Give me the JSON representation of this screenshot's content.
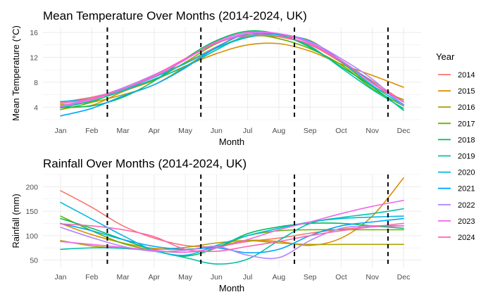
{
  "chart_data": [
    {
      "type": "line",
      "title": "Mean Temperature Over Months (2014-2024, UK)",
      "xlabel": "Month",
      "ylabel": "Mean Temperature (°C)",
      "categories": [
        "Jan",
        "Feb",
        "Mar",
        "Apr",
        "May",
        "Jun",
        "Jul",
        "Aug",
        "Sep",
        "Oct",
        "Nov",
        "Dec"
      ],
      "ylim": [
        2,
        16.8
      ],
      "yticks": [
        4,
        8,
        12,
        16
      ],
      "season_dividers": [
        2.5,
        5.5,
        8.5,
        11.5
      ],
      "grid": true,
      "series": [
        {
          "name": "2014",
          "color": "#F8766D",
          "values": [
            4.8,
            5.6,
            6.9,
            8.9,
            11.1,
            13.7,
            15.8,
            15.3,
            14.0,
            11.2,
            8.2,
            4.9
          ]
        },
        {
          "name": "2015",
          "color": "#DB8E00",
          "values": [
            3.9,
            4.3,
            6.5,
            8.3,
            10.6,
            12.6,
            14.0,
            14.2,
            13.0,
            10.9,
            9.1,
            7.2
          ]
        },
        {
          "name": "2016",
          "color": "#AEA200",
          "values": [
            4.4,
            4.8,
            6.0,
            7.6,
            10.5,
            13.5,
            15.3,
            15.3,
            14.7,
            11.2,
            7.4,
            5.2
          ]
        },
        {
          "name": "2017",
          "color": "#64B200",
          "values": [
            3.6,
            4.8,
            6.9,
            8.4,
            11.2,
            14.2,
            15.6,
            15.0,
            13.4,
            10.8,
            7.0,
            4.2
          ]
        },
        {
          "name": "2018",
          "color": "#00BD5C",
          "values": [
            4.0,
            4.2,
            5.6,
            8.2,
            11.8,
            14.7,
            16.2,
            15.7,
            13.6,
            10.5,
            7.3,
            3.5
          ]
        },
        {
          "name": "2019",
          "color": "#00C1A7",
          "values": [
            3.9,
            5.0,
            6.6,
            8.5,
            10.5,
            13.2,
            15.5,
            15.6,
            13.8,
            10.3,
            6.8,
            3.8
          ]
        },
        {
          "name": "2020",
          "color": "#00BADE",
          "values": [
            4.9,
            5.4,
            6.8,
            8.8,
            11.0,
            13.5,
            15.2,
            15.7,
            14.3,
            11.3,
            7.5,
            4.3
          ]
        },
        {
          "name": "2021",
          "color": "#00A6FF",
          "values": [
            2.6,
            3.8,
            5.8,
            7.6,
            10.3,
            13.6,
            15.8,
            15.7,
            14.6,
            11.5,
            8.0,
            4.4
          ]
        },
        {
          "name": "2022",
          "color": "#B385FF",
          "values": [
            4.2,
            5.4,
            7.1,
            9.2,
            11.7,
            14.3,
            15.8,
            15.8,
            14.5,
            11.8,
            8.5,
            4.2
          ]
        },
        {
          "name": "2023",
          "color": "#EF67EB",
          "values": [
            4.1,
            5.2,
            6.9,
            8.9,
            11.6,
            14.5,
            16.0,
            15.8,
            14.3,
            11.5,
            7.8,
            4.8
          ]
        },
        {
          "name": "2024",
          "color": "#FF63B6",
          "values": [
            4.6,
            5.4,
            6.9,
            9.1,
            11.8,
            14.3,
            15.5,
            15.4,
            14.1,
            11.4,
            7.9,
            4.9
          ]
        }
      ]
    },
    {
      "type": "line",
      "title": "Rainfall Over Months (2014-2024, UK)",
      "xlabel": "Month",
      "ylabel": "Rainfall (mm)",
      "categories": [
        "Jan",
        "Feb",
        "Mar",
        "Apr",
        "May",
        "Jun",
        "Jul",
        "Aug",
        "Sep",
        "Oct",
        "Nov",
        "Dec"
      ],
      "ylim": [
        35,
        225
      ],
      "yticks": [
        50,
        100,
        150,
        200
      ],
      "season_dividers": [
        2.5,
        5.5,
        8.5,
        11.5
      ],
      "grid": true,
      "series": [
        {
          "name": "2014",
          "color": "#F8766D",
          "values": [
            192,
            158,
            120,
            95,
            80,
            78,
            88,
            95,
            105,
            113,
            118,
            120
          ]
        },
        {
          "name": "2015",
          "color": "#DB8E00",
          "values": [
            125,
            102,
            85,
            74,
            72,
            78,
            90,
            88,
            80,
            95,
            140,
            218
          ]
        },
        {
          "name": "2016",
          "color": "#AEA200",
          "values": [
            90,
            79,
            74,
            72,
            76,
            85,
            90,
            85,
            82,
            82,
            82,
            82
          ]
        },
        {
          "name": "2017",
          "color": "#64B200",
          "values": [
            140,
            110,
            84,
            70,
            66,
            76,
            100,
            110,
            112,
            112,
            112,
            112
          ]
        },
        {
          "name": "2018",
          "color": "#00BD5C",
          "values": [
            135,
            115,
            92,
            70,
            58,
            75,
            104,
            118,
            125,
            125,
            120,
            115
          ]
        },
        {
          "name": "2019",
          "color": "#00C1A7",
          "values": [
            72,
            75,
            74,
            68,
            55,
            42,
            52,
            90,
            125,
            137,
            145,
            155
          ]
        },
        {
          "name": "2020",
          "color": "#00BADE",
          "values": [
            168,
            134,
            100,
            70,
            60,
            80,
            100,
            115,
            128,
            135,
            138,
            140
          ]
        },
        {
          "name": "2021",
          "color": "#00A6FF",
          "values": [
            125,
            110,
            92,
            78,
            72,
            75,
            65,
            72,
            100,
            120,
            128,
            135
          ]
        },
        {
          "name": "2022",
          "color": "#B385FF",
          "values": [
            117,
            96,
            78,
            68,
            70,
            78,
            60,
            55,
            90,
            115,
            120,
            120
          ]
        },
        {
          "name": "2023",
          "color": "#EF67EB",
          "values": [
            88,
            82,
            76,
            70,
            66,
            75,
            92,
            112,
            128,
            145,
            160,
            172
          ]
        },
        {
          "name": "2024",
          "color": "#FF63B6",
          "values": [
            124,
            120,
            112,
            98,
            72,
            68,
            78,
            88,
            100,
            110,
            118,
            125
          ]
        }
      ]
    }
  ],
  "legend": {
    "title": "Year",
    "position": "right",
    "items": [
      "2014",
      "2015",
      "2016",
      "2017",
      "2018",
      "2019",
      "2020",
      "2021",
      "2022",
      "2023",
      "2024"
    ]
  }
}
